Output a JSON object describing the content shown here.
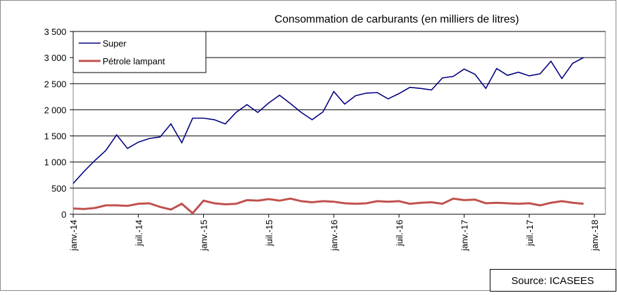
{
  "chart_data": {
    "type": "line",
    "title": "Consommation de carburants (en milliers de litres)",
    "source": "Source: ICASEES",
    "categories": [
      "janv.-14",
      null,
      null,
      null,
      null,
      null,
      "juil.-14",
      null,
      null,
      null,
      null,
      null,
      "janv.-15",
      null,
      null,
      null,
      null,
      null,
      "juil.-15",
      null,
      null,
      null,
      null,
      null,
      "janv.-16",
      null,
      null,
      null,
      null,
      null,
      "juil.-16",
      null,
      null,
      null,
      null,
      null,
      "janv.-17",
      null,
      null,
      null,
      null,
      null,
      "juil.-17",
      null,
      null,
      null,
      null,
      null,
      "janv.-18"
    ],
    "series": [
      {
        "name": "Super",
        "color": "#000080",
        "values": [
          590,
          820,
          1030,
          1220,
          1520,
          1260,
          1380,
          1450,
          1480,
          1730,
          1370,
          1840,
          1840,
          1810,
          1730,
          1950,
          2100,
          1950,
          2130,
          2280,
          2120,
          1950,
          1810,
          1960,
          2350,
          2110,
          2270,
          2320,
          2330,
          2210,
          2310,
          2430,
          2410,
          2380,
          2610,
          2640,
          2780,
          2680,
          2410,
          2790,
          2660,
          2720,
          2650,
          2690,
          2930,
          2600,
          2890,
          3000,
          null
        ]
      },
      {
        "name": "Pétrole lampant",
        "color": "#c0504d",
        "values": [
          110,
          100,
          120,
          170,
          170,
          160,
          200,
          210,
          140,
          90,
          200,
          20,
          260,
          210,
          190,
          200,
          270,
          260,
          290,
          260,
          300,
          250,
          230,
          250,
          240,
          210,
          200,
          210,
          250,
          240,
          250,
          200,
          220,
          230,
          200,
          300,
          270,
          280,
          210,
          220,
          210,
          200,
          210,
          170,
          220,
          250,
          220,
          200,
          null
        ]
      }
    ],
    "ylim": [
      0,
      3500
    ],
    "yticks": [
      0,
      500,
      {
        "value": 1000,
        "label": "1 000"
      },
      {
        "value": 1500,
        "label": "1 500"
      },
      {
        "value": 2000,
        "label": "2 000"
      },
      {
        "value": 2500,
        "label": "2 500"
      },
      {
        "value": 3000,
        "label": "3 000"
      },
      {
        "value": 3500,
        "label": "3 500"
      }
    ],
    "grid": true,
    "legend": "upper left"
  }
}
